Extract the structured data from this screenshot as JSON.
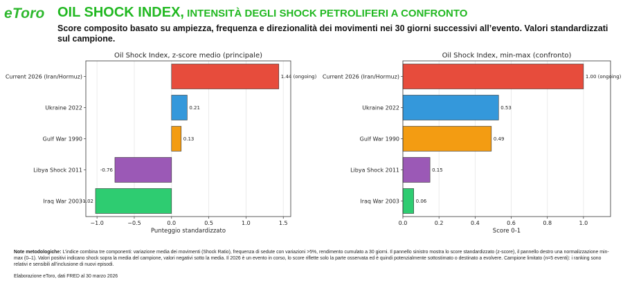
{
  "header": {
    "logo": "eToro",
    "title_main": "OIL SHOCK INDEX,",
    "title_sub": " INTENSITÀ DEGLI SHOCK PETROLIFERI A CONFRONTO",
    "subtitle": "Score composito basato su ampiezza, frequenza e direzionalità dei movimenti nei 30 giorni successivi all’evento. Valori standardizzati sul campione."
  },
  "chart_data": [
    {
      "type": "bar",
      "orientation": "horizontal",
      "title": "Oil Shock Index, z-score medio (principale)",
      "xlabel": "Punteggio standardizzato",
      "ylabel": "",
      "categories": [
        "Current 2026 (Iran/Hormuz)",
        "Ukraine 2022",
        "Gulf War 1990",
        "Libya Shock 2011",
        "Iraq War 2003"
      ],
      "values": [
        1.44,
        0.21,
        0.13,
        -0.76,
        -1.02
      ],
      "value_labels": [
        "1.44 (ongoing)",
        "0.21",
        "0.13",
        "-0.76",
        "-1.02"
      ],
      "colors": [
        "#e74c3c",
        "#3498db",
        "#f39c12",
        "#9b59b6",
        "#2ecc71"
      ],
      "xlim": [
        -1.15,
        1.6
      ],
      "xticks": [
        -1.0,
        -0.5,
        0.0,
        0.5,
        1.0,
        1.5
      ],
      "xtick_labels": [
        "−1.0",
        "−0.5",
        "0.0",
        "0.5",
        "1.0",
        "1.5"
      ],
      "grid": "vertical"
    },
    {
      "type": "bar",
      "orientation": "horizontal",
      "title": "Oil Shock Index, min-max (confronto)",
      "xlabel": "Score 0-1",
      "ylabel": "",
      "categories": [
        "Current 2026 (Iran/Hormuz)",
        "Ukraine 2022",
        "Gulf War 1990",
        "Libya Shock 2011",
        "Iraq War 2003"
      ],
      "values": [
        1.0,
        0.53,
        0.49,
        0.15,
        0.06
      ],
      "value_labels": [
        "1.00 (ongoing)",
        "0.53",
        "0.49",
        "0.15",
        "0.06"
      ],
      "colors": [
        "#e74c3c",
        "#3498db",
        "#f39c12",
        "#9b59b6",
        "#2ecc71"
      ],
      "xlim": [
        0,
        1.15
      ],
      "xticks": [
        0.0,
        0.2,
        0.4,
        0.6,
        0.8,
        1.0
      ],
      "xtick_labels": [
        "0.0",
        "0.2",
        "0.4",
        "0.6",
        "0.8",
        "1.0"
      ],
      "grid": "vertical"
    }
  ],
  "notes": {
    "label": "Note metodologiche:",
    "text": " L’indice combina tre componenti: variazione media dei movimenti (Shock Ratio), frequenza di sedute con variazioni >5%, rendimento cumulato a 30 giorni. Il pannello sinistro mostra lo score standardizzato (z-score), il pannello destro una normalizzazione min-max (0–1). Valori positivi indicano shock sopra la media del campione, valori negativi sotto la media. Il 2026 è un evento in corso, lo score riflette solo la parte osservata ed è quindi potenzialmente sottostimato o destinato a evolvere. Campione limitato (n=5 eventi): i ranking sono relativi e sensibili all’inclusione di nuovi episodi.",
    "source": "Elaborazione eToro, dati FRED al 30 marzo 2026"
  }
}
